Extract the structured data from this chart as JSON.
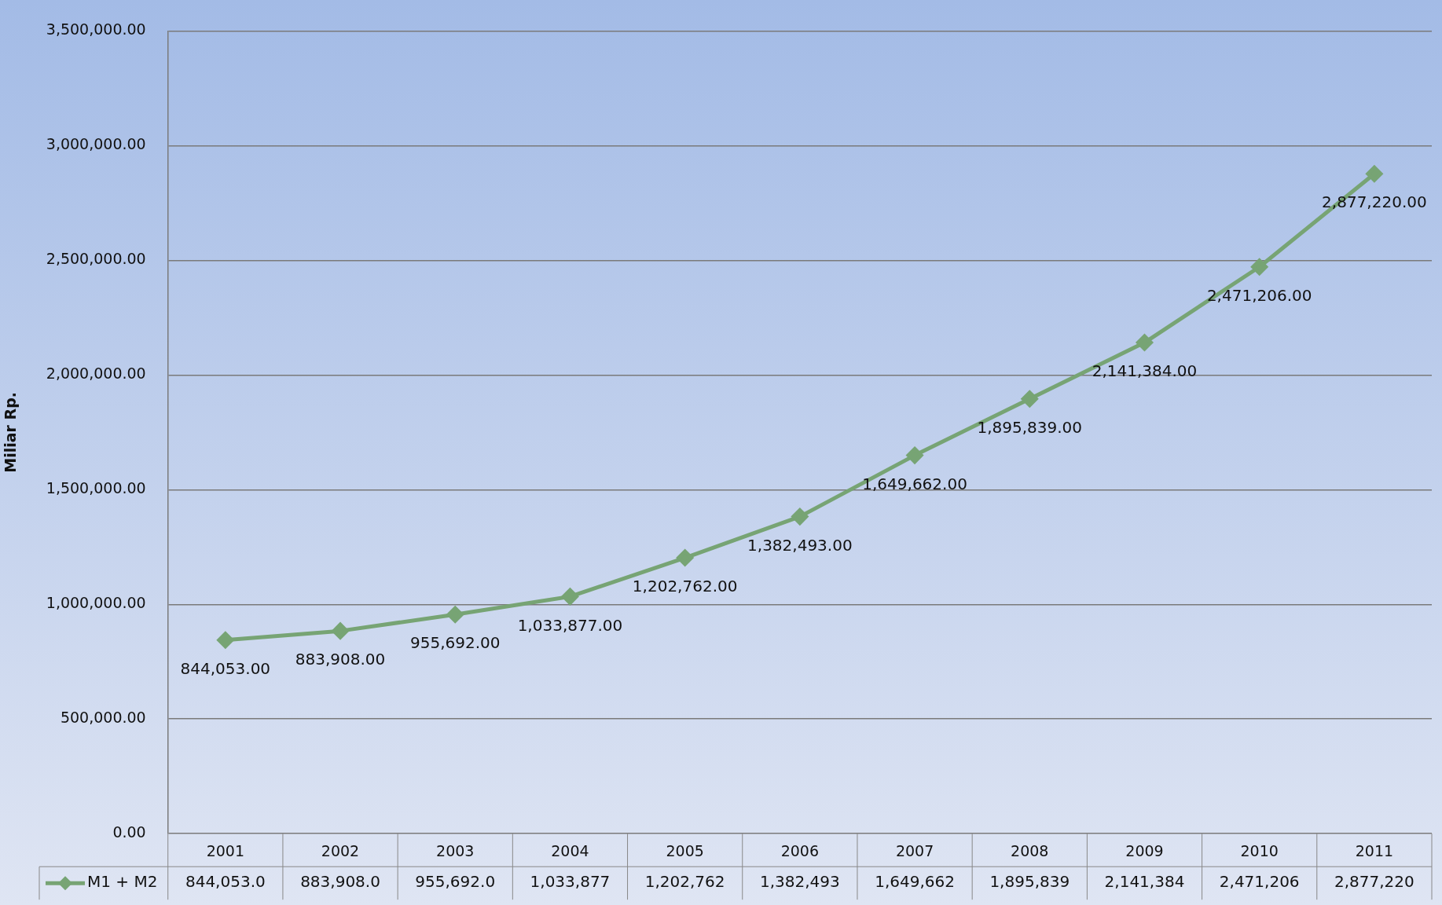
{
  "chart_data": {
    "type": "line",
    "ylabel": "Miliar Rp.",
    "categories": [
      "2001",
      "2002",
      "2003",
      "2004",
      "2005",
      "2006",
      "2007",
      "2008",
      "2009",
      "2010",
      "2011"
    ],
    "series": [
      {
        "name": "M1 + M2",
        "color": "#77a474",
        "values": [
          844053,
          883908,
          955692,
          1033877,
          1202762,
          1382493,
          1649662,
          1895839,
          2141384,
          2471206,
          2877220
        ],
        "value_labels": [
          "844,053.00",
          "883,908.00",
          "955,692.00",
          "1,033,877.00",
          "1,202,762.00",
          "1,382,493.00",
          "1,649,662.00",
          "1,895,839.00",
          "2,141,384.00",
          "2,471,206.00",
          "2,877,220.00"
        ]
      }
    ],
    "annotations": [
      "844,053.0",
      "883,908.0",
      "955,692.0",
      "1,033,877",
      "1,202,762",
      "1,382,493",
      "1,649,662",
      "1,895,839",
      "2,141,384",
      "2,471,206",
      "2,877,220"
    ],
    "ylim": [
      0,
      3500000
    ],
    "yticks": [
      {
        "value": 0,
        "label": "0.00"
      },
      {
        "value": 500000,
        "label": "500,000.00"
      },
      {
        "value": 1000000,
        "label": "1,000,000.00"
      },
      {
        "value": 1500000,
        "label": "1,500,000.00"
      },
      {
        "value": 2000000,
        "label": "2,000,000.00"
      },
      {
        "value": 2500000,
        "label": "2,500,000.00"
      },
      {
        "value": 3000000,
        "label": "3,000,000.00"
      },
      {
        "value": 3500000,
        "label": "3,500,000.00"
      }
    ],
    "grid": "y",
    "legend": "bottom",
    "marker": "diamond",
    "line_style": "solid"
  }
}
